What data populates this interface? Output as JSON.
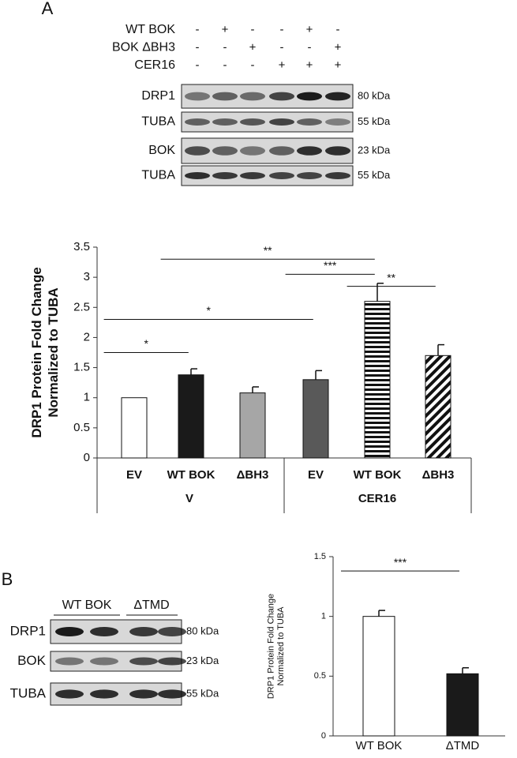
{
  "panels": [
    "A",
    "B"
  ],
  "blot_a": {
    "conditions": [
      {
        "label": "WT BOK",
        "signs": [
          "-",
          "+",
          "-",
          "-",
          "+",
          "-"
        ]
      },
      {
        "label": "BOK ΔBH3",
        "signs": [
          "-",
          "-",
          "+",
          "-",
          "-",
          "+"
        ]
      },
      {
        "label": "CER16",
        "signs": [
          "-",
          "-",
          "-",
          "+",
          "+",
          "+"
        ]
      }
    ],
    "rows": [
      {
        "label": "DRP1",
        "size": "80 kDa"
      },
      {
        "label": "TUBA",
        "size": "55 kDa"
      },
      {
        "label": "BOK",
        "size": "23 kDa"
      },
      {
        "label": "TUBA",
        "size": "55 kDa"
      }
    ]
  },
  "blot_b": {
    "groups": [
      "WT BOK",
      "ΔTMD"
    ],
    "rows": [
      {
        "label": "DRP1",
        "size": "80 kDa"
      },
      {
        "label": "BOK",
        "size": "23 kDa"
      },
      {
        "label": "TUBA",
        "size": "55 kDa"
      }
    ]
  },
  "chart_data": [
    {
      "type": "bar",
      "y_label": [
        "DRP1 Protein Fold Change",
        "Normalized to TUBA"
      ],
      "categories": [
        "EV",
        "WT BOK",
        "ΔBH3",
        "EV",
        "WT BOK",
        "ΔBH3"
      ],
      "groups": [
        "V",
        "CER16"
      ],
      "values": [
        1,
        1.38,
        1.08,
        1.3,
        2.6,
        1.7
      ],
      "errors": [
        0,
        0.1,
        0.1,
        0.15,
        0.3,
        0.18
      ],
      "fills": [
        "#ffffff",
        "#1a1a1a",
        "#a6a6a6",
        "#595959",
        "horizontal-stripes",
        "diagonal-stripes"
      ],
      "ylim": [
        0,
        3.5
      ],
      "yticks": [
        0,
        0.5,
        1,
        1.5,
        2,
        2.5,
        3,
        3.5
      ],
      "significance": [
        {
          "bars": [
            0,
            1
          ],
          "label": "*"
        },
        {
          "bars": [
            0,
            3
          ],
          "label": "*"
        },
        {
          "bars": [
            1,
            4
          ],
          "label": "**"
        },
        {
          "bars": [
            3,
            4
          ],
          "label": "***"
        },
        {
          "bars": [
            4,
            5
          ],
          "label": "**"
        }
      ]
    },
    {
      "type": "bar",
      "y_label": [
        "DRP1 Protein Fold Change",
        "Normalized to TUBA"
      ],
      "categories": [
        "WT BOK",
        "ΔTMD"
      ],
      "values": [
        1,
        0.52
      ],
      "errors": [
        0.05,
        0.05
      ],
      "fills": [
        "#ffffff",
        "#1a1a1a"
      ],
      "ylim": [
        0,
        1.5
      ],
      "yticks": [
        0,
        0.5,
        1,
        1.5
      ],
      "significance": [
        {
          "bars": [
            0,
            1
          ],
          "label": "***"
        }
      ]
    }
  ]
}
